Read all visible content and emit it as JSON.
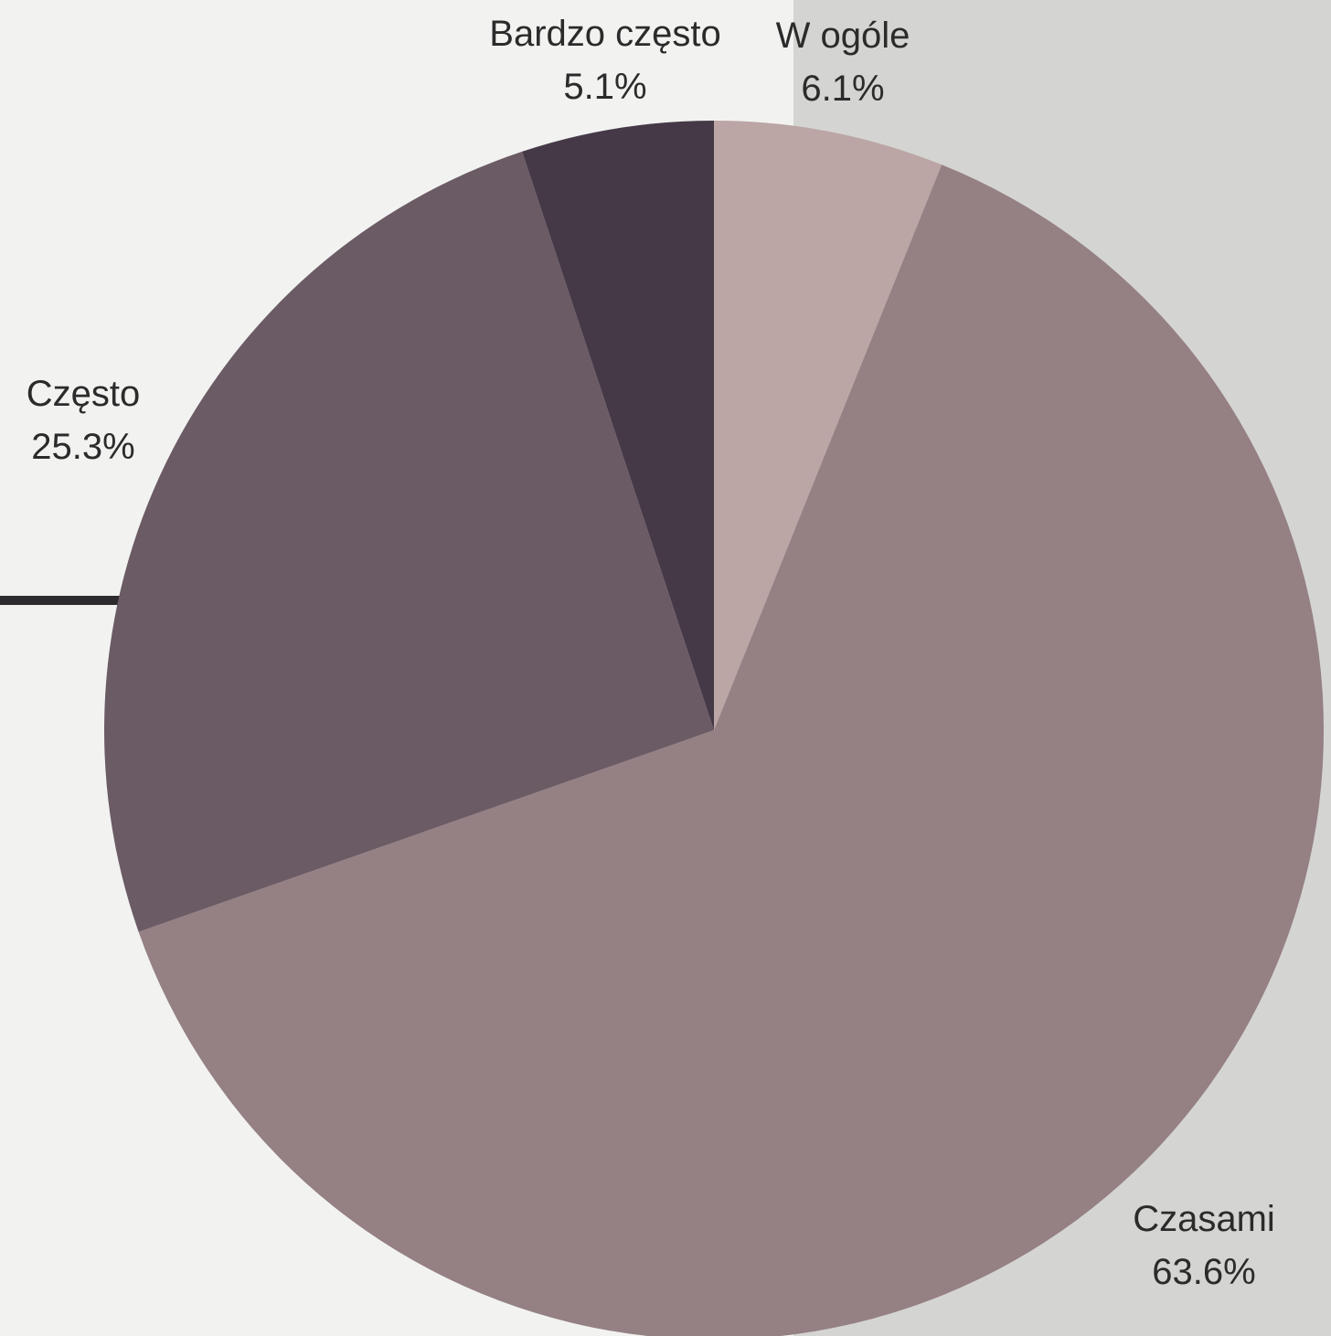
{
  "colors": {
    "background": "#f2f3f1",
    "right_panel": "#d4d5d2",
    "bar_line": "#2e2b2e"
  },
  "chart_data": {
    "type": "pie",
    "start": "top",
    "direction": "clockwise",
    "slices": [
      {
        "label": "W ogóle",
        "value": 6.1,
        "value_text": "6.1%",
        "color": "#bba5a5"
      },
      {
        "label": "Czasami",
        "value": 63.6,
        "value_text": "63.6%",
        "color": "#958084"
      },
      {
        "label": "Często",
        "value": 25.3,
        "value_text": "25.3%",
        "color": "#6b5b65"
      },
      {
        "label": "Bardzo często",
        "value": 5.1,
        "value_text": "5.1%",
        "color": "#453947"
      }
    ]
  }
}
